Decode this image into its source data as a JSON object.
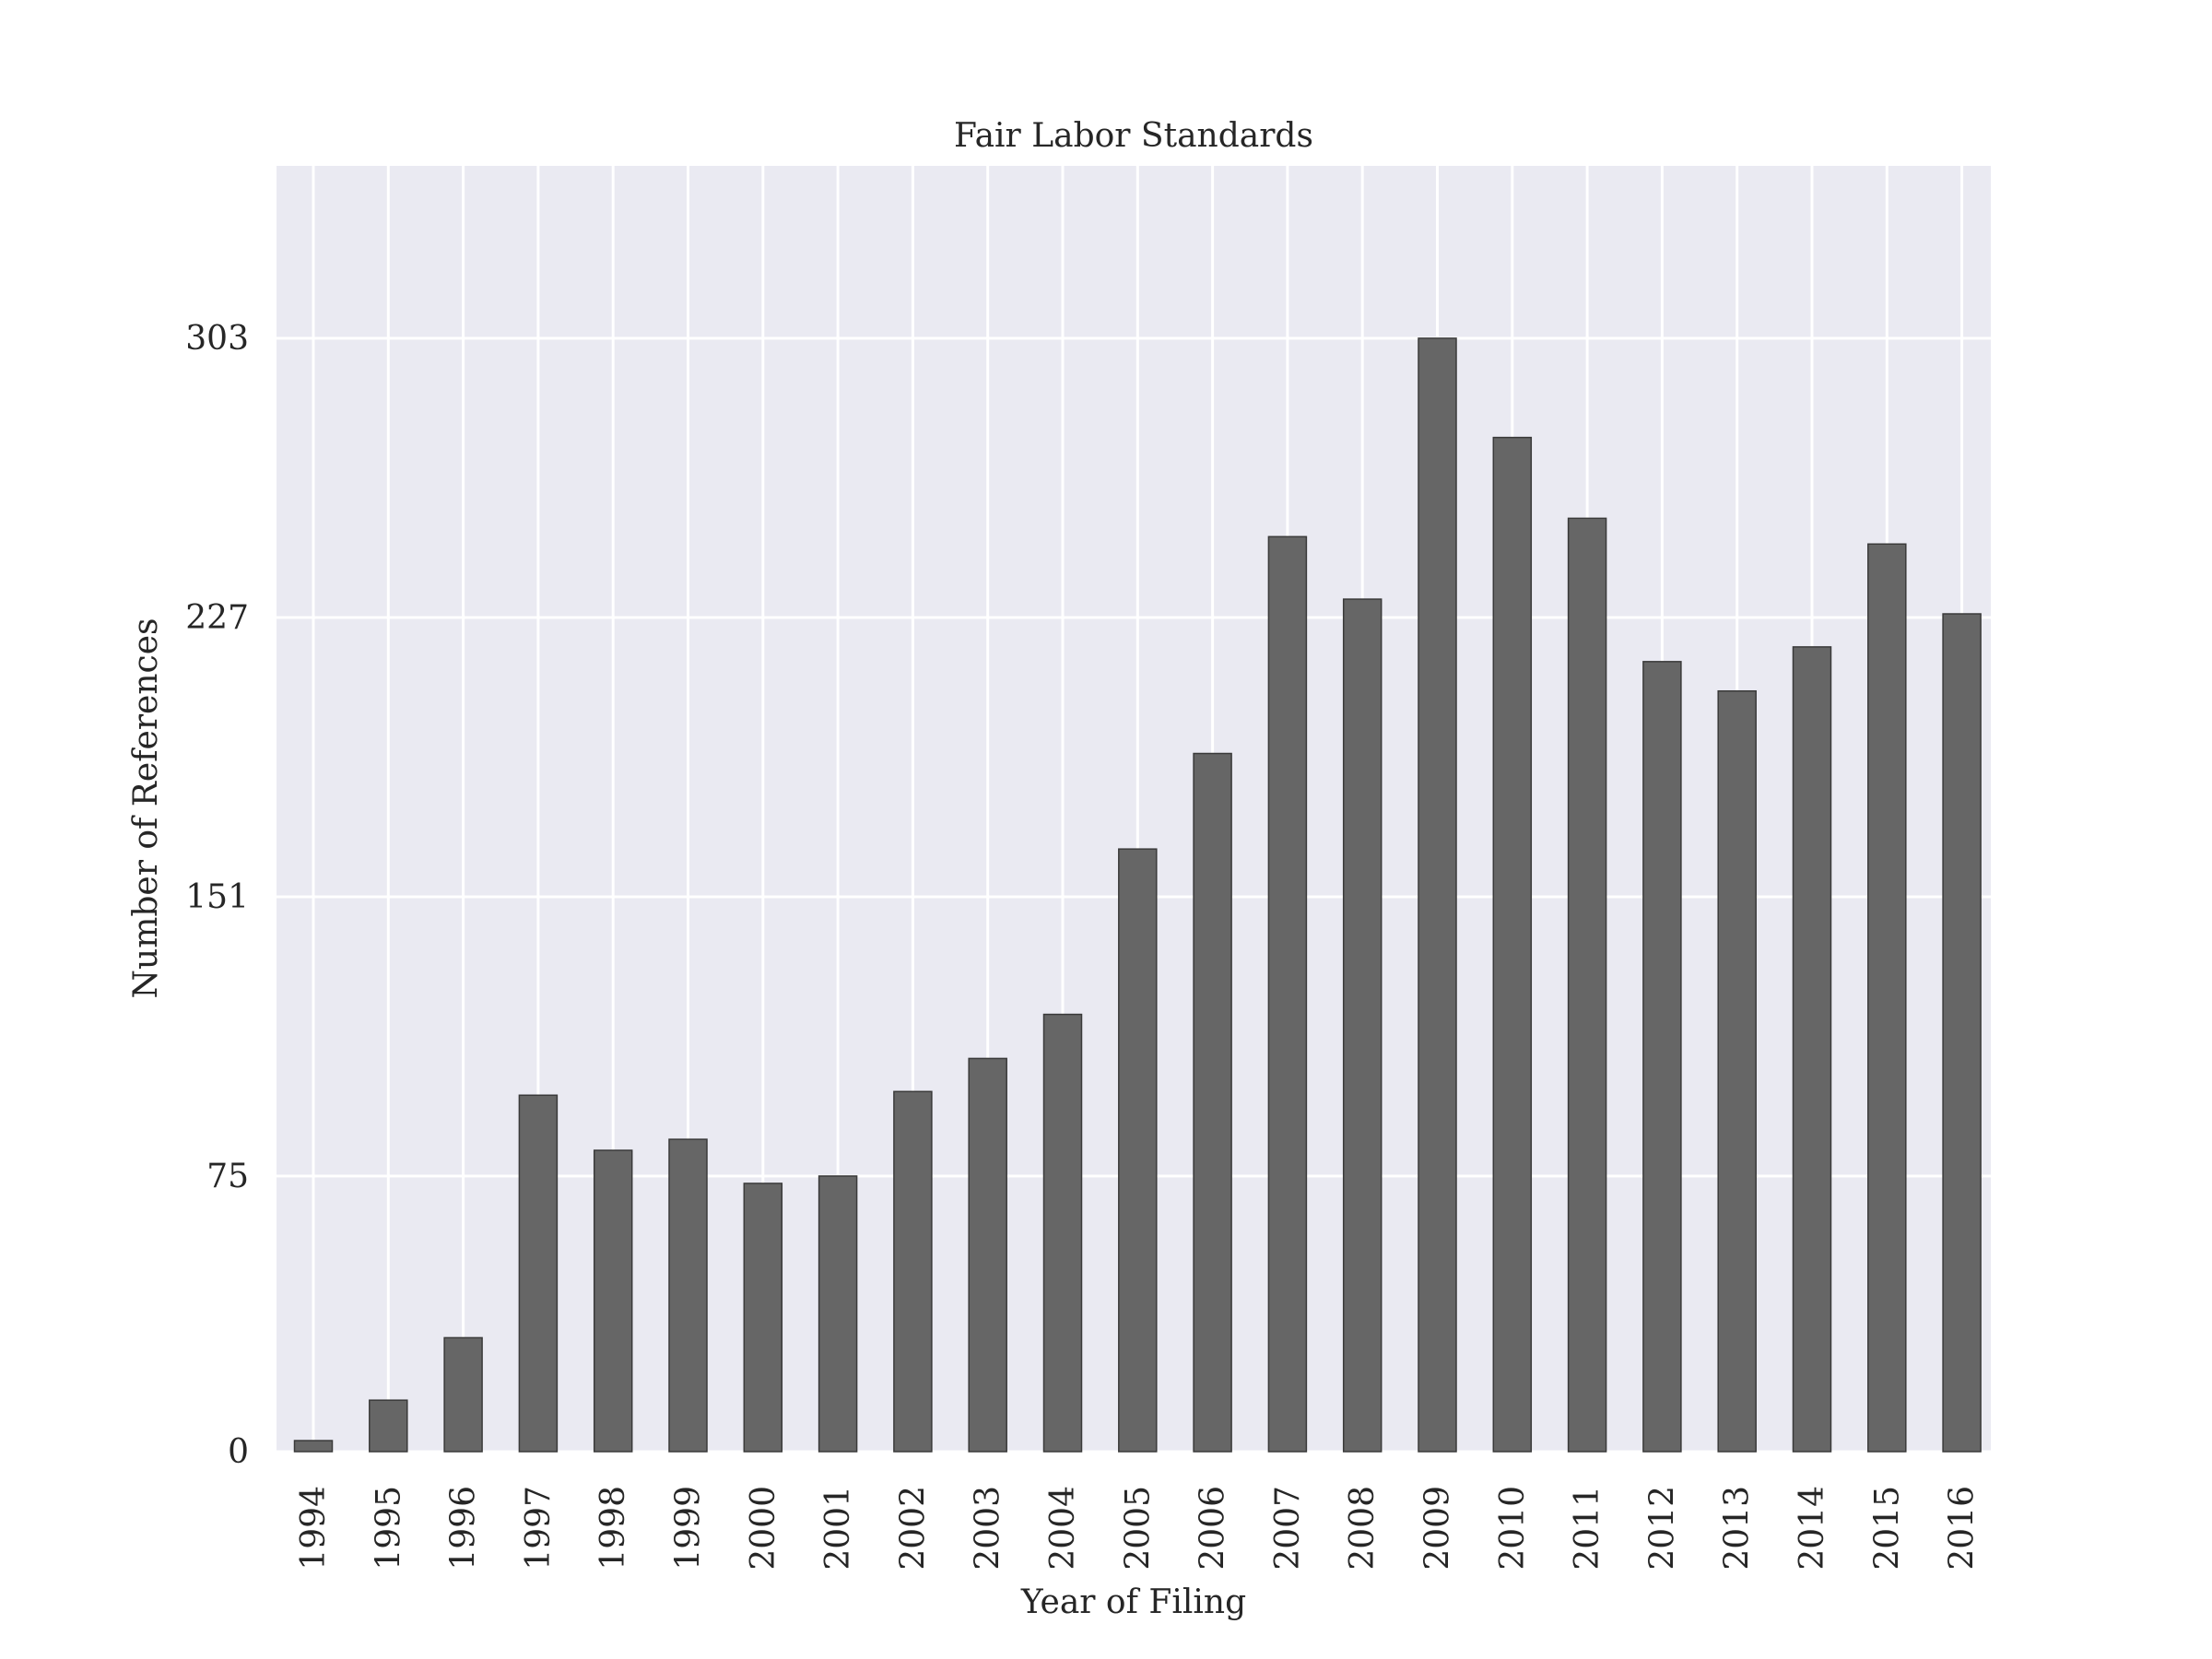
{
  "chart_data": {
    "type": "bar",
    "title": "Fair Labor Standards",
    "xlabel": "Year of Filing",
    "ylabel": "Number of References",
    "categories": [
      "1994",
      "1995",
      "1996",
      "1997",
      "1998",
      "1999",
      "2000",
      "2001",
      "2002",
      "2003",
      "2004",
      "2005",
      "2006",
      "2007",
      "2008",
      "2009",
      "2010",
      "2011",
      "2012",
      "2013",
      "2014",
      "2015",
      "2016"
    ],
    "values": [
      3,
      14,
      31,
      97,
      82,
      85,
      73,
      75,
      98,
      107,
      119,
      164,
      190,
      249,
      232,
      303,
      276,
      254,
      215,
      207,
      219,
      247,
      228
    ],
    "yticks": [
      0,
      75,
      151,
      227,
      303
    ],
    "ylim": [
      0,
      350
    ],
    "grid": true,
    "legend": "none",
    "bar_color": "#666666",
    "background_color": "#eaeaf2",
    "grid_color": "#ffffff"
  }
}
